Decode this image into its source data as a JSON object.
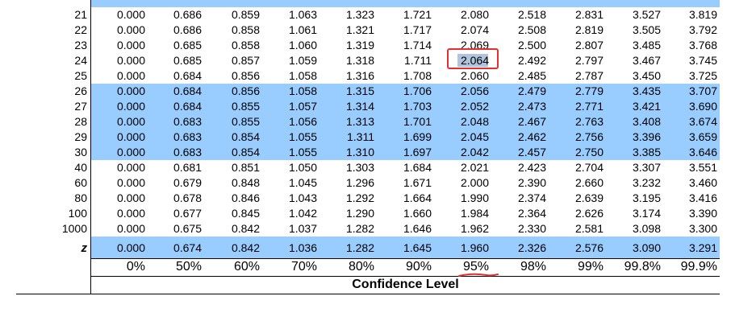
{
  "table": {
    "columns": [
      "0%",
      "50%",
      "60%",
      "70%",
      "80%",
      "90%",
      "95%",
      "98%",
      "99%",
      "99.8%",
      "99.9%"
    ],
    "rows": [
      {
        "df": "21",
        "values": [
          "0.000",
          "0.686",
          "0.859",
          "1.063",
          "1.323",
          "1.721",
          "2.080",
          "2.518",
          "2.831",
          "3.527",
          "3.819"
        ]
      },
      {
        "df": "22",
        "values": [
          "0.000",
          "0.686",
          "0.858",
          "1.061",
          "1.321",
          "1.717",
          "2.074",
          "2.508",
          "2.819",
          "3.505",
          "3.792"
        ]
      },
      {
        "df": "23",
        "values": [
          "0.000",
          "0.685",
          "0.858",
          "1.060",
          "1.319",
          "1.714",
          "2.069",
          "2.500",
          "2.807",
          "3.485",
          "3.768"
        ]
      },
      {
        "df": "24",
        "values": [
          "0.000",
          "0.685",
          "0.857",
          "1.059",
          "1.318",
          "1.711",
          "2.064",
          "2.492",
          "2.797",
          "3.467",
          "3.745"
        ]
      },
      {
        "df": "25",
        "values": [
          "0.000",
          "0.684",
          "0.856",
          "1.058",
          "1.316",
          "1.708",
          "2.060",
          "2.485",
          "2.787",
          "3.450",
          "3.725"
        ]
      },
      {
        "df": "26",
        "values": [
          "0.000",
          "0.684",
          "0.856",
          "1.058",
          "1.315",
          "1.706",
          "2.056",
          "2.479",
          "2.779",
          "3.435",
          "3.707"
        ]
      },
      {
        "df": "27",
        "values": [
          "0.000",
          "0.684",
          "0.855",
          "1.057",
          "1.314",
          "1.703",
          "2.052",
          "2.473",
          "2.771",
          "3.421",
          "3.690"
        ]
      },
      {
        "df": "28",
        "values": [
          "0.000",
          "0.683",
          "0.855",
          "1.056",
          "1.313",
          "1.701",
          "2.048",
          "2.467",
          "2.763",
          "3.408",
          "3.674"
        ]
      },
      {
        "df": "29",
        "values": [
          "0.000",
          "0.683",
          "0.854",
          "1.055",
          "1.311",
          "1.699",
          "2.045",
          "2.462",
          "2.756",
          "3.396",
          "3.659"
        ]
      },
      {
        "df": "30",
        "values": [
          "0.000",
          "0.683",
          "0.854",
          "1.055",
          "1.310",
          "1.697",
          "2.042",
          "2.457",
          "2.750",
          "3.385",
          "3.646"
        ]
      },
      {
        "df": "40",
        "values": [
          "0.000",
          "0.681",
          "0.851",
          "1.050",
          "1.303",
          "1.684",
          "2.021",
          "2.423",
          "2.704",
          "3.307",
          "3.551"
        ]
      },
      {
        "df": "60",
        "values": [
          "0.000",
          "0.679",
          "0.848",
          "1.045",
          "1.296",
          "1.671",
          "2.000",
          "2.390",
          "2.660",
          "3.232",
          "3.460"
        ]
      },
      {
        "df": "80",
        "values": [
          "0.000",
          "0.678",
          "0.846",
          "1.043",
          "1.292",
          "1.664",
          "1.990",
          "2.374",
          "2.639",
          "3.195",
          "3.416"
        ]
      },
      {
        "df": "100",
        "values": [
          "0.000",
          "0.677",
          "0.845",
          "1.042",
          "1.290",
          "1.660",
          "1.984",
          "2.364",
          "2.626",
          "3.174",
          "3.390"
        ]
      },
      {
        "df": "1000",
        "values": [
          "0.000",
          "0.675",
          "0.842",
          "1.037",
          "1.282",
          "1.646",
          "1.962",
          "2.330",
          "2.581",
          "3.098",
          "3.300"
        ]
      }
    ],
    "z_row": {
      "label": "z",
      "values": [
        "0.000",
        "0.674",
        "0.842",
        "1.036",
        "1.282",
        "1.645",
        "1.960",
        "2.326",
        "2.576",
        "3.090",
        "3.291"
      ]
    },
    "footer_label": "Confidence Level",
    "selected_value": "2.064",
    "underlined_column": "95%"
  },
  "colors": {
    "band": "#99ccff",
    "highlight": "#e53030",
    "selection": "#b0c4de"
  }
}
